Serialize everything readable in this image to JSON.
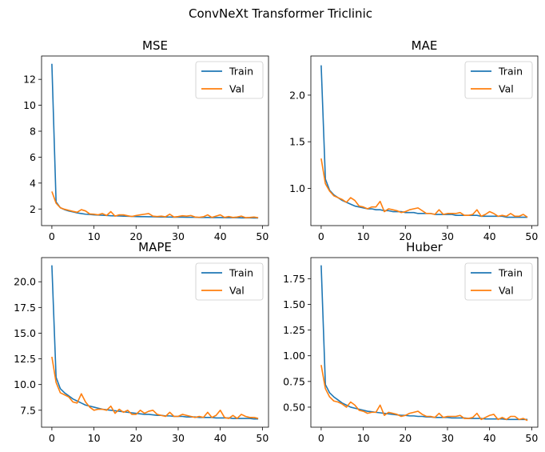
{
  "figure": {
    "title": "ConvNeXt Transformer Triclinic"
  },
  "colors": {
    "train": "#1f77b4",
    "val": "#ff7f0e"
  },
  "chart_data": [
    {
      "type": "line",
      "title": "MSE",
      "xlabel": "",
      "ylabel": "",
      "xlim": [
        -2.45,
        51.45
      ],
      "ylim": [
        0.72,
        13.8
      ],
      "xticks": [
        0,
        10,
        20,
        30,
        40,
        50
      ],
      "yticks": [
        2,
        4,
        6,
        8,
        10,
        12
      ],
      "ytick_labels": [
        "2",
        "4",
        "6",
        "8",
        "10",
        "12"
      ],
      "legend": {
        "position": "upper right"
      },
      "x": [
        0,
        1,
        2,
        3,
        4,
        5,
        6,
        7,
        8,
        9,
        10,
        11,
        12,
        13,
        14,
        15,
        16,
        17,
        18,
        19,
        20,
        21,
        22,
        23,
        24,
        25,
        26,
        27,
        28,
        29,
        30,
        31,
        32,
        33,
        34,
        35,
        36,
        37,
        38,
        39,
        40,
        41,
        42,
        43,
        44,
        45,
        46,
        47,
        48,
        49
      ],
      "series": [
        {
          "name": "Train",
          "values": [
            13.2,
            2.55,
            2.1,
            1.95,
            1.85,
            1.78,
            1.7,
            1.65,
            1.6,
            1.58,
            1.55,
            1.53,
            1.52,
            1.5,
            1.48,
            1.47,
            1.46,
            1.45,
            1.44,
            1.43,
            1.42,
            1.41,
            1.41,
            1.4,
            1.4,
            1.39,
            1.39,
            1.38,
            1.38,
            1.37,
            1.37,
            1.37,
            1.36,
            1.36,
            1.36,
            1.35,
            1.35,
            1.35,
            1.34,
            1.34,
            1.34,
            1.33,
            1.33,
            1.33,
            1.33,
            1.32,
            1.32,
            1.32,
            1.31,
            1.31
          ]
        },
        {
          "name": "Val",
          "values": [
            3.35,
            2.45,
            2.1,
            1.98,
            1.9,
            1.82,
            1.75,
            1.95,
            1.85,
            1.62,
            1.6,
            1.55,
            1.65,
            1.5,
            1.8,
            1.45,
            1.55,
            1.55,
            1.48,
            1.42,
            1.5,
            1.55,
            1.6,
            1.65,
            1.45,
            1.42,
            1.45,
            1.4,
            1.6,
            1.38,
            1.42,
            1.48,
            1.45,
            1.5,
            1.38,
            1.36,
            1.4,
            1.55,
            1.35,
            1.45,
            1.55,
            1.35,
            1.42,
            1.35,
            1.38,
            1.45,
            1.33,
            1.35,
            1.38,
            1.33
          ]
        }
      ]
    },
    {
      "type": "line",
      "title": "MAE",
      "xlabel": "",
      "ylabel": "",
      "xlim": [
        -2.45,
        51.45
      ],
      "ylim": [
        0.6,
        2.42
      ],
      "xticks": [
        0,
        10,
        20,
        30,
        40,
        50
      ],
      "yticks": [
        1.0,
        1.5,
        2.0
      ],
      "ytick_labels": [
        "1.0",
        "1.5",
        "2.0"
      ],
      "legend": {
        "position": "upper right"
      },
      "x": [
        0,
        1,
        2,
        3,
        4,
        5,
        6,
        7,
        8,
        9,
        10,
        11,
        12,
        13,
        14,
        15,
        16,
        17,
        18,
        19,
        20,
        21,
        22,
        23,
        24,
        25,
        26,
        27,
        28,
        29,
        30,
        31,
        32,
        33,
        34,
        35,
        36,
        37,
        38,
        39,
        40,
        41,
        42,
        43,
        44,
        45,
        46,
        47,
        48,
        49
      ],
      "series": [
        {
          "name": "Train",
          "values": [
            2.32,
            1.1,
            0.98,
            0.93,
            0.9,
            0.87,
            0.85,
            0.83,
            0.81,
            0.8,
            0.79,
            0.78,
            0.78,
            0.77,
            0.77,
            0.76,
            0.76,
            0.75,
            0.75,
            0.75,
            0.74,
            0.74,
            0.74,
            0.73,
            0.73,
            0.73,
            0.73,
            0.72,
            0.72,
            0.72,
            0.72,
            0.72,
            0.71,
            0.71,
            0.71,
            0.71,
            0.71,
            0.71,
            0.7,
            0.7,
            0.7,
            0.7,
            0.7,
            0.7,
            0.69,
            0.69,
            0.69,
            0.69,
            0.69,
            0.69
          ]
        },
        {
          "name": "Val",
          "values": [
            1.32,
            1.05,
            0.97,
            0.92,
            0.9,
            0.88,
            0.85,
            0.9,
            0.87,
            0.81,
            0.8,
            0.78,
            0.8,
            0.8,
            0.86,
            0.75,
            0.78,
            0.77,
            0.76,
            0.74,
            0.75,
            0.77,
            0.78,
            0.79,
            0.76,
            0.73,
            0.73,
            0.72,
            0.77,
            0.72,
            0.73,
            0.73,
            0.73,
            0.74,
            0.71,
            0.71,
            0.72,
            0.77,
            0.7,
            0.72,
            0.75,
            0.73,
            0.7,
            0.71,
            0.7,
            0.73,
            0.7,
            0.7,
            0.72,
            0.69
          ]
        }
      ]
    },
    {
      "type": "line",
      "title": "MAPE",
      "xlabel": "",
      "ylabel": "",
      "xlim": [
        -2.45,
        51.45
      ],
      "ylim": [
        5.85,
        22.35
      ],
      "xticks": [
        0,
        10,
        20,
        30,
        40,
        50
      ],
      "yticks": [
        7.5,
        10.0,
        12.5,
        15.0,
        17.5,
        20.0
      ],
      "ytick_labels": [
        "7.5",
        "10.0",
        "12.5",
        "15.0",
        "17.5",
        "20.0"
      ],
      "legend": {
        "position": "upper right"
      },
      "x": [
        0,
        1,
        2,
        3,
        4,
        5,
        6,
        7,
        8,
        9,
        10,
        11,
        12,
        13,
        14,
        15,
        16,
        17,
        18,
        19,
        20,
        21,
        22,
        23,
        24,
        25,
        26,
        27,
        28,
        29,
        30,
        31,
        32,
        33,
        34,
        35,
        36,
        37,
        38,
        39,
        40,
        41,
        42,
        43,
        44,
        45,
        46,
        47,
        48,
        49
      ],
      "series": [
        {
          "name": "Train",
          "values": [
            21.6,
            10.7,
            9.6,
            9.2,
            8.9,
            8.6,
            8.4,
            8.2,
            8.0,
            7.9,
            7.8,
            7.7,
            7.6,
            7.55,
            7.5,
            7.45,
            7.4,
            7.35,
            7.3,
            7.25,
            7.2,
            7.15,
            7.1,
            7.1,
            7.05,
            7.0,
            7.0,
            6.95,
            6.95,
            6.9,
            6.9,
            6.9,
            6.85,
            6.85,
            6.85,
            6.8,
            6.8,
            6.8,
            6.8,
            6.75,
            6.75,
            6.75,
            6.75,
            6.7,
            6.7,
            6.7,
            6.7,
            6.7,
            6.65,
            6.65
          ]
        },
        {
          "name": "Val",
          "values": [
            12.7,
            10.2,
            9.2,
            9.0,
            8.8,
            8.3,
            8.2,
            9.1,
            8.3,
            7.8,
            7.5,
            7.6,
            7.6,
            7.5,
            7.9,
            7.2,
            7.6,
            7.3,
            7.5,
            7.1,
            7.1,
            7.5,
            7.2,
            7.4,
            7.5,
            7.1,
            7.0,
            6.9,
            7.3,
            6.9,
            6.9,
            7.1,
            7.0,
            6.9,
            6.8,
            6.9,
            6.8,
            7.3,
            6.8,
            7.0,
            7.5,
            6.8,
            6.7,
            7.0,
            6.7,
            7.1,
            6.9,
            6.8,
            6.8,
            6.7
          ]
        }
      ]
    },
    {
      "type": "line",
      "title": "Huber",
      "xlabel": "",
      "ylabel": "",
      "xlim": [
        -2.45,
        51.45
      ],
      "ylim": [
        0.305,
        1.955
      ],
      "xticks": [
        0,
        10,
        20,
        30,
        40,
        50
      ],
      "yticks": [
        0.5,
        0.75,
        1.0,
        1.25,
        1.5,
        1.75
      ],
      "ytick_labels": [
        "0.50",
        "0.75",
        "1.00",
        "1.25",
        "1.50",
        "1.75"
      ],
      "legend": {
        "position": "upper right"
      },
      "x": [
        0,
        1,
        2,
        3,
        4,
        5,
        6,
        7,
        8,
        9,
        10,
        11,
        12,
        13,
        14,
        15,
        16,
        17,
        18,
        19,
        20,
        21,
        22,
        23,
        24,
        25,
        26,
        27,
        28,
        29,
        30,
        31,
        32,
        33,
        34,
        35,
        36,
        37,
        38,
        39,
        40,
        41,
        42,
        43,
        44,
        45,
        46,
        47,
        48,
        49
      ],
      "series": [
        {
          "name": "Train",
          "values": [
            1.88,
            0.72,
            0.64,
            0.6,
            0.57,
            0.54,
            0.52,
            0.5,
            0.49,
            0.48,
            0.47,
            0.46,
            0.455,
            0.45,
            0.445,
            0.44,
            0.435,
            0.43,
            0.425,
            0.42,
            0.42,
            0.415,
            0.415,
            0.41,
            0.41,
            0.405,
            0.405,
            0.4,
            0.4,
            0.4,
            0.4,
            0.395,
            0.395,
            0.395,
            0.395,
            0.39,
            0.39,
            0.39,
            0.39,
            0.385,
            0.385,
            0.385,
            0.385,
            0.385,
            0.38,
            0.38,
            0.38,
            0.38,
            0.38,
            0.38
          ]
        },
        {
          "name": "Val",
          "values": [
            0.91,
            0.68,
            0.6,
            0.56,
            0.55,
            0.53,
            0.5,
            0.55,
            0.52,
            0.47,
            0.46,
            0.44,
            0.45,
            0.45,
            0.52,
            0.42,
            0.45,
            0.44,
            0.43,
            0.41,
            0.42,
            0.44,
            0.45,
            0.46,
            0.43,
            0.41,
            0.41,
            0.4,
            0.44,
            0.4,
            0.41,
            0.41,
            0.41,
            0.42,
            0.39,
            0.39,
            0.4,
            0.44,
            0.38,
            0.4,
            0.42,
            0.43,
            0.38,
            0.4,
            0.38,
            0.41,
            0.41,
            0.38,
            0.39,
            0.37
          ]
        }
      ]
    }
  ]
}
